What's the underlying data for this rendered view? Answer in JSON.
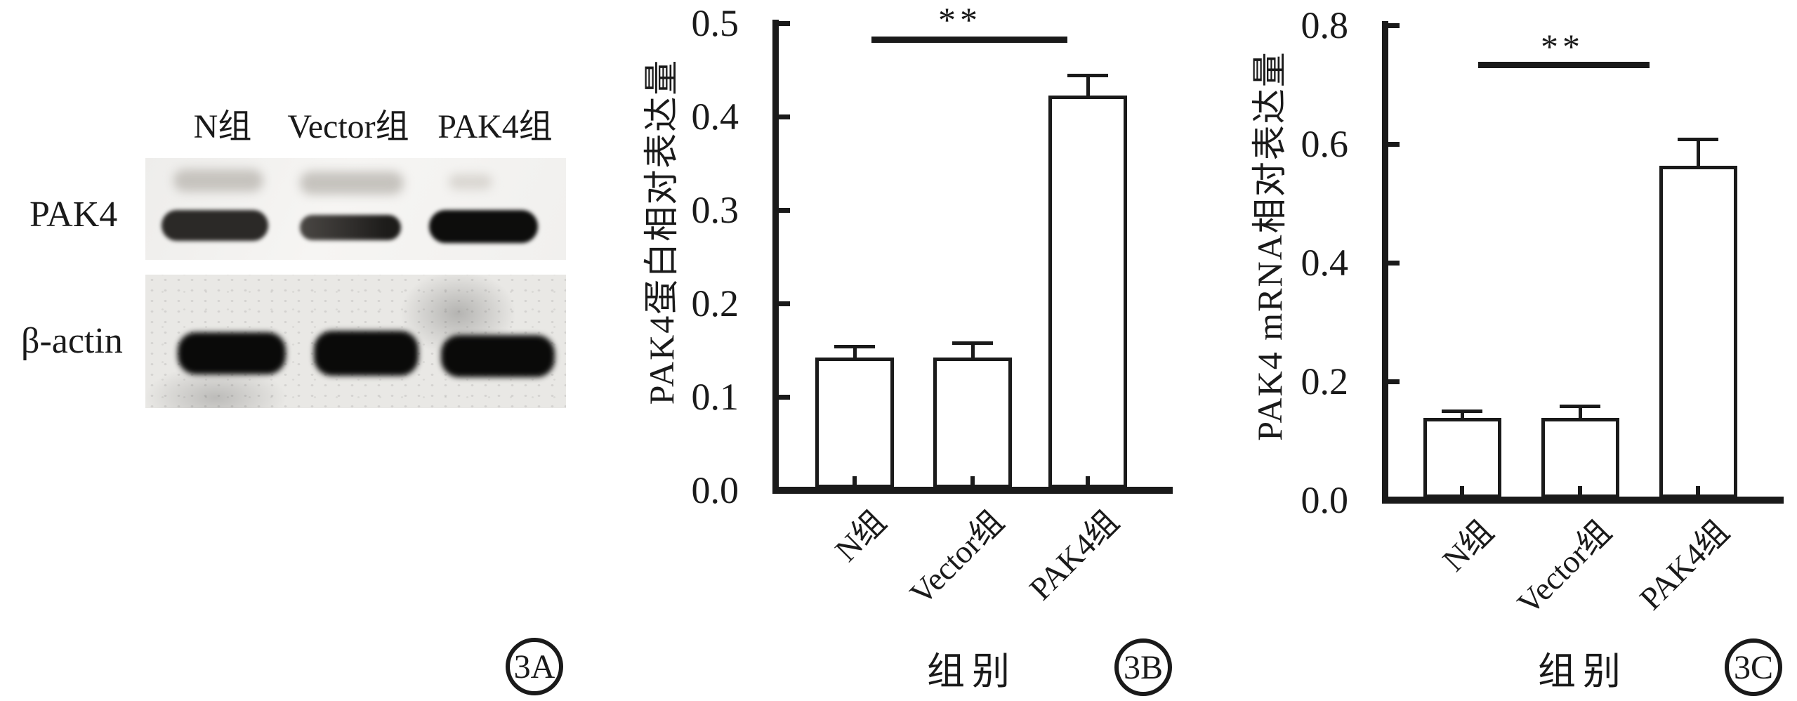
{
  "panel_a": {
    "tag": "3A",
    "lane_labels": [
      "N组",
      "Vector组",
      "PAK4组"
    ],
    "rows": [
      {
        "label": "PAK4",
        "ghost_band_intensities": [
          "faint",
          "faint",
          "very-faint"
        ],
        "band_intensities": [
          "medium",
          "weak",
          "strong"
        ]
      },
      {
        "label": "β-actin",
        "band_intensities": [
          "strong",
          "strong",
          "strong"
        ]
      }
    ]
  },
  "chart_data": [
    {
      "panel_tag": "3B",
      "type": "bar",
      "title": "",
      "categories": [
        "N组",
        "Vector组",
        "PAK4组"
      ],
      "values": [
        0.14,
        0.14,
        0.42
      ],
      "errors": [
        0.012,
        0.016,
        0.022
      ],
      "xlabel": "组别",
      "ylabel": "PAK4蛋白相对表达量",
      "ylim": [
        0.0,
        0.5
      ],
      "yticks": [
        0.0,
        0.1,
        0.2,
        0.3,
        0.4,
        0.5
      ],
      "grid": false,
      "legend": "none",
      "bar_fill": "#ffffff",
      "bar_border": "#1a1a1a",
      "significance": {
        "label": "**",
        "from": "N组",
        "to": "PAK4组"
      }
    },
    {
      "panel_tag": "3C",
      "type": "bar",
      "title": "",
      "categories": [
        "N组",
        "Vector组",
        "PAK4组"
      ],
      "values": [
        0.135,
        0.135,
        0.56
      ],
      "errors": [
        0.012,
        0.02,
        0.045
      ],
      "xlabel": "组别",
      "ylabel": "PAK4 mRNA相对表达量",
      "ylim": [
        0.0,
        0.8
      ],
      "yticks": [
        0.0,
        0.2,
        0.4,
        0.6,
        0.8
      ],
      "grid": false,
      "legend": "none",
      "bar_fill": "#ffffff",
      "bar_border": "#1a1a1a",
      "significance": {
        "label": "**",
        "from": "N组",
        "to": "PAK4组"
      }
    }
  ],
  "colors": {
    "ink": "#1a1a1a",
    "background": "#ffffff"
  }
}
